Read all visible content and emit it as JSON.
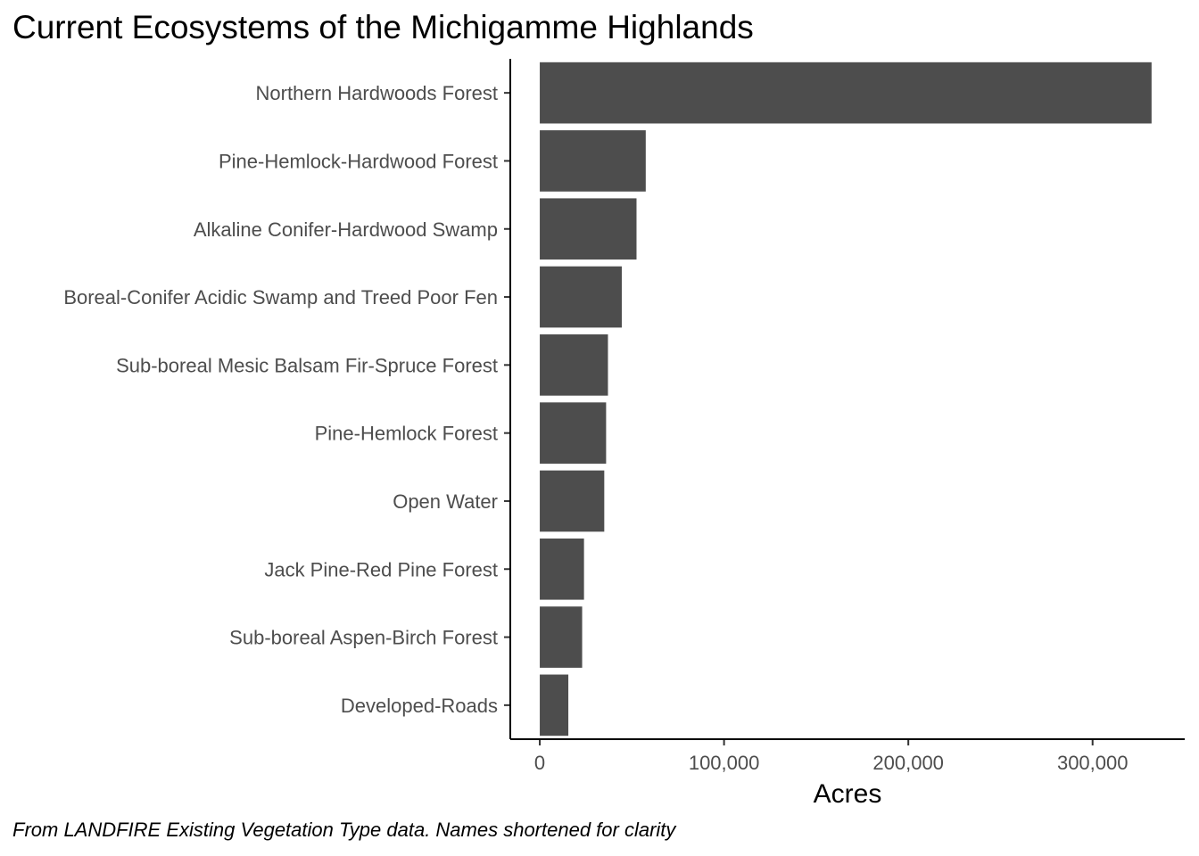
{
  "chart_data": {
    "type": "bar",
    "orientation": "horizontal",
    "title": "Current Ecosystems of the Michigamme Highlands",
    "caption": "From LANDFIRE Existing Vegetation Type data. Names shortened for clarity",
    "xlabel": "Acres",
    "ylabel": "",
    "categories": [
      "Northern Hardwoods Forest",
      "Pine-Hemlock-Hardwood Forest",
      "Alkaline Conifer-Hardwood Swamp",
      "Boreal-Conifer Acidic Swamp and Treed Poor Fen",
      "Sub-boreal Mesic Balsam Fir-Spruce Forest",
      "Pine-Hemlock Forest",
      "Open Water",
      "Jack Pine-Red Pine Forest",
      "Sub-boreal Aspen-Birch Forest",
      "Developed-Roads"
    ],
    "values": [
      332000,
      57500,
      52500,
      44500,
      37000,
      36000,
      35000,
      24000,
      23000,
      15500
    ],
    "xlim": [
      -16000,
      350000
    ],
    "xticks": [
      0,
      100000,
      200000,
      300000
    ],
    "xtick_labels": [
      "0",
      "100,000",
      "200,000",
      "300,000"
    ],
    "bar_color": "#4d4d4d",
    "grid": false,
    "legend": "none"
  }
}
